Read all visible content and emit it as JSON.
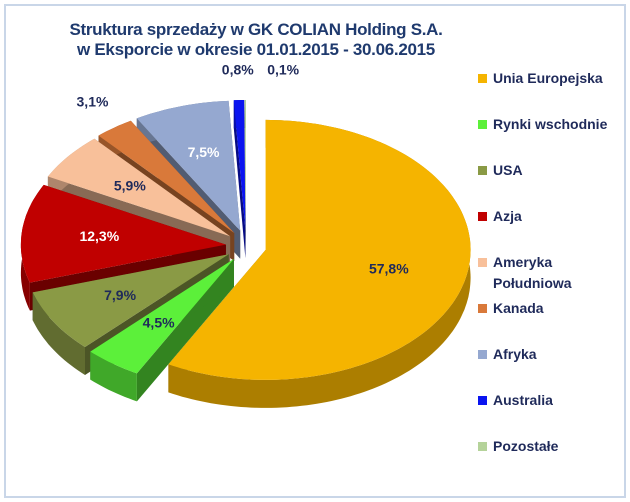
{
  "chart_data": {
    "type": "pie",
    "title": [
      "Struktura sprzedaży w GK COLIAN Holding S.A.",
      "w Eksporcie w okresie 01.01.2015 - 30.06.2015"
    ],
    "categories": [
      "Unia Europejska",
      "Rynki wschodnie",
      "USA",
      "Azja",
      "Ameryka Południowa",
      "Kanada",
      "Afryka",
      "Australia",
      "Pozostałe"
    ],
    "values": [
      57.8,
      4.5,
      7.9,
      12.3,
      5.9,
      3.1,
      7.5,
      0.8,
      0.1
    ],
    "value_labels": [
      "57,8%",
      "4,5%",
      "7,9%",
      "12,3%",
      "5,9%",
      "3,1%",
      "7,5%",
      "0,8%",
      "0,1%"
    ],
    "colors": [
      "#f5b400",
      "#5cf03a",
      "#8a9a45",
      "#c00000",
      "#f8c09a",
      "#d9793a",
      "#95a8d0",
      "#0a14f0",
      "#b5d39a"
    ],
    "legend": "right"
  }
}
